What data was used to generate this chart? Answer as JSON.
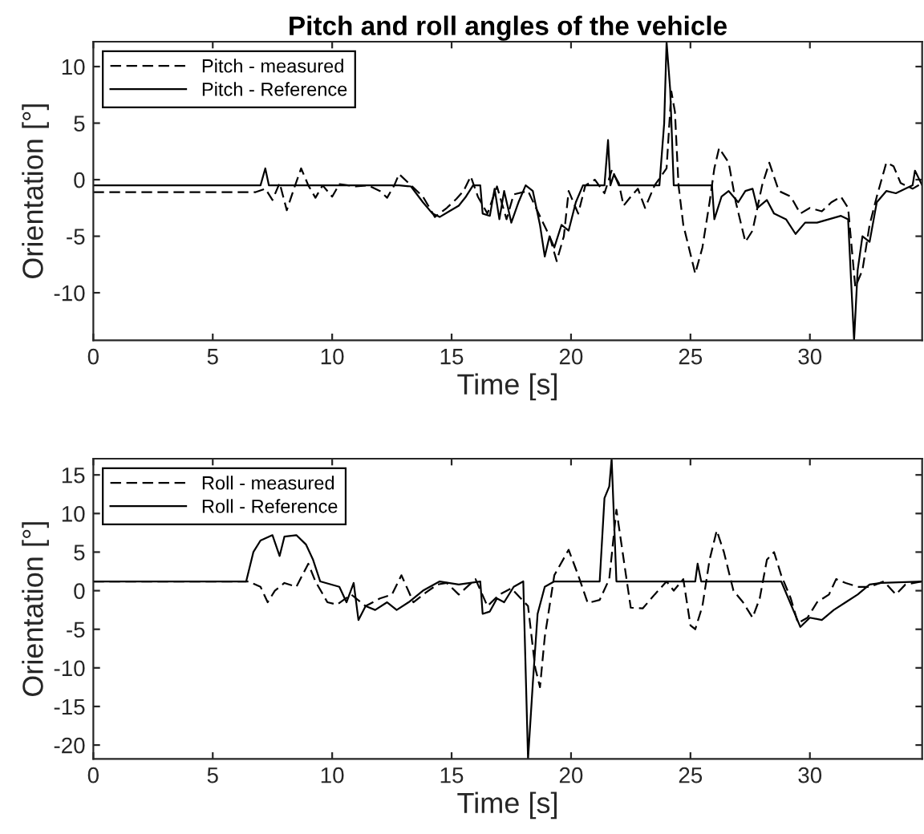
{
  "chart_data": [
    {
      "type": "line",
      "title": "Pitch and roll angles of the vehicle",
      "xlabel": "Time [s]",
      "ylabel": "Orientation [°]",
      "xlim": [
        0,
        34.7
      ],
      "ylim": [
        -14.2,
        12.2
      ],
      "xticks": [
        0,
        5,
        10,
        15,
        20,
        25,
        30
      ],
      "yticks": [
        -10,
        -5,
        0,
        5,
        10
      ],
      "legend": "top left",
      "grid": false,
      "series": [
        {
          "name": "Pitch - measured",
          "color": "#000000",
          "line_style": "dashed",
          "x": [
            0,
            6.8,
            7.2,
            7.5,
            7.8,
            8.1,
            8.4,
            8.7,
            9.0,
            9.3,
            9.6,
            10,
            10.3,
            11,
            11.5,
            12.0,
            12.3,
            12.6,
            12.8,
            13.2,
            13.8,
            14.3,
            14.8,
            15.2,
            15.5,
            15.8,
            16.1,
            16.5,
            16.9,
            17.3,
            17.6,
            18.2,
            18.6,
            19.1,
            19.4,
            19.7,
            19.9,
            20.3,
            20.6,
            21.0,
            21.4,
            21.7,
            22.0,
            22.2,
            22.5,
            22.8,
            23.1,
            23.5,
            24.0,
            24.2,
            24.35,
            24.5,
            24.7,
            25.2,
            25.5,
            25.8,
            26.0,
            26.2,
            26.6,
            26.9,
            27.3,
            27.6,
            28,
            28.3,
            28.7,
            29.2,
            29.6,
            30,
            30.5,
            30.9,
            31.3,
            31.6,
            31.9,
            32.2,
            32.5,
            32.8,
            33.0,
            33.2,
            33.5,
            33.8,
            34.3,
            34.7
          ],
          "values": [
            -1.1,
            -1.1,
            -0.8,
            -1.8,
            -0.3,
            -2.7,
            -0.8,
            1.0,
            -0.5,
            -1.6,
            -0.5,
            -1.5,
            -0.4,
            -0.6,
            -0.5,
            -1,
            -1.6,
            -0.5,
            0.5,
            -0.3,
            -1.5,
            -3.3,
            -2.5,
            -1.7,
            -1,
            0.3,
            -1.5,
            -3,
            -0.6,
            -3.5,
            -1.3,
            -1,
            -2.8,
            -5,
            -7.2,
            -5,
            -1,
            -3,
            -0.5,
            0,
            -1.2,
            0.8,
            -0.3,
            -2.3,
            -1.5,
            -0.8,
            -2.5,
            -0.5,
            1,
            7.8,
            6,
            -0.5,
            -4,
            -8.3,
            -6,
            -2,
            1,
            2.8,
            1.5,
            -2,
            -5.5,
            -4.5,
            -0.5,
            1.5,
            -1,
            -1.5,
            -3,
            -2.5,
            -2.8,
            -2,
            -1.5,
            -2.5,
            -9.5,
            -8,
            -4,
            -1.5,
            0,
            1.5,
            1.2,
            -0.3,
            -0.8,
            -0.3
          ]
        },
        {
          "name": "Pitch - Reference",
          "color": "#000000",
          "line_style": "solid",
          "x": [
            0,
            7.0,
            7.2,
            7.35,
            12.8,
            13.3,
            13.8,
            14.2,
            14.5,
            14.9,
            15.3,
            15.6,
            15.9,
            16.2,
            16.3,
            16.6,
            16.8,
            17.0,
            17.2,
            17.5,
            17.8,
            18.1,
            18.4,
            18.7,
            18.9,
            19.1,
            19.3,
            19.6,
            19.9,
            20.2,
            20.5,
            21.4,
            21.55,
            21.65,
            21.8,
            22,
            23.7,
            23.9,
            24.0,
            24.15,
            24.3,
            25.9,
            26.0,
            26.3,
            26.6,
            27,
            27.3,
            27.6,
            27.8,
            28.2,
            28.5,
            29,
            29.4,
            29.8,
            30.3,
            30.8,
            31.3,
            31.6,
            31.75,
            31.85,
            32.0,
            32.2,
            32.5,
            32.8,
            33.2,
            33.6,
            34.0,
            34.3,
            34.4,
            34.7
          ],
          "values": [
            -0.5,
            -0.5,
            1.0,
            -0.5,
            -0.5,
            -0.6,
            -2,
            -3,
            -3.3,
            -2.8,
            -2.3,
            -1.5,
            -0.5,
            -0.5,
            -3,
            -3.2,
            -0.8,
            -3.5,
            -1,
            -3.8,
            -2,
            -0.5,
            -1,
            -4,
            -6.8,
            -5,
            -6,
            -4,
            -4.5,
            -2,
            -0.5,
            -0.5,
            3.5,
            -0.5,
            0.5,
            -0.5,
            -0.5,
            5,
            12.2,
            8,
            -0.5,
            -0.5,
            -3.5,
            -1.5,
            -1.0,
            -2,
            -1,
            -0.8,
            -2.5,
            -1.8,
            -3,
            -3.5,
            -4.8,
            -3.8,
            -3.8,
            -3.5,
            -3.2,
            -3.5,
            -10,
            -14.2,
            -8,
            -5,
            -5.5,
            -2,
            -1.0,
            -1.2,
            -0.8,
            -0.5,
            0.8,
            -0.5
          ]
        }
      ]
    },
    {
      "type": "line",
      "xlabel": "Time [s]",
      "ylabel": "Orientation [°]",
      "xlim": [
        0,
        34.7
      ],
      "ylim": [
        -21.8,
        17.1
      ],
      "xticks": [
        0,
        5,
        10,
        15,
        20,
        25,
        30
      ],
      "yticks": [
        -20,
        -15,
        -10,
        -5,
        0,
        5,
        10,
        15
      ],
      "legend": "top left",
      "grid": false,
      "series": [
        {
          "name": "Roll - measured",
          "color": "#000000",
          "line_style": "dashed",
          "x": [
            0,
            6.5,
            7.0,
            7.3,
            7.6,
            8.0,
            8.5,
            9.0,
            9.3,
            9.8,
            10.2,
            10.8,
            11.4,
            12,
            12.5,
            12.9,
            13.4,
            13.9,
            14.4,
            14.8,
            15.3,
            16.0,
            16.5,
            17.0,
            17.5,
            18.2,
            18.5,
            18.7,
            18.9,
            19.3,
            19.9,
            20.3,
            20.7,
            21.2,
            21.6,
            21.9,
            22.3,
            22.5,
            23,
            23.5,
            24,
            24.3,
            24.7,
            25.0,
            25.2,
            25.5,
            25.8,
            26.1,
            26.4,
            26.8,
            27.2,
            27.6,
            27.9,
            28.2,
            28.5,
            28.8,
            29.2,
            29.5,
            29.9,
            30.3,
            30.8,
            31.1,
            31.5,
            32,
            32.5,
            33.1,
            33.6,
            34.0,
            34.7
          ],
          "values": [
            1.2,
            1.2,
            0.5,
            -1.5,
            0,
            1,
            0.5,
            3.5,
            1.2,
            -1.5,
            -1.8,
            -0.5,
            -2,
            -1,
            -0.5,
            2,
            -1.5,
            -0.3,
            0.8,
            1,
            -0.5,
            1.5,
            -2,
            -0.5,
            0.3,
            -2,
            -10,
            -12.5,
            -6,
            2,
            5.3,
            2,
            -1.6,
            -1.2,
            1.5,
            10.5,
            2,
            -2.2,
            -2.3,
            -0.5,
            1.2,
            0,
            1.5,
            -4.5,
            -5,
            -2,
            4,
            7.8,
            5,
            0,
            -1.5,
            -3.5,
            -1,
            4,
            5,
            2,
            -1,
            -4.2,
            -3.5,
            -1.5,
            -0.5,
            1.5,
            1,
            0.5,
            0.5,
            1.2,
            -0.5,
            0.8,
            1.2
          ]
        },
        {
          "name": "Roll - Reference",
          "color": "#000000",
          "line_style": "solid",
          "x": [
            0,
            6.4,
            6.7,
            7.0,
            7.5,
            7.8,
            8.0,
            8.5,
            8.9,
            9.2,
            9.5,
            10.3,
            10.6,
            10.9,
            11.1,
            11.4,
            11.8,
            12.3,
            12.7,
            13.2,
            13.8,
            14.5,
            15.3,
            16.2,
            16.3,
            16.6,
            16.9,
            17.2,
            17.6,
            18.0,
            18.2,
            18.4,
            18.6,
            18.9,
            19.3,
            21.2,
            21.4,
            21.6,
            21.7,
            21.9,
            25.2,
            25.3,
            25.45,
            28.8,
            29.1,
            29.6,
            30.0,
            30.5,
            31,
            31.5,
            32,
            32.5,
            33,
            34.7
          ],
          "values": [
            1.2,
            1.2,
            5,
            6.5,
            7.2,
            4.5,
            7,
            7.2,
            6,
            4,
            1.2,
            0.5,
            -1.5,
            1,
            -3.8,
            -2,
            -2.5,
            -1.5,
            -2.5,
            -1.5,
            0,
            1.2,
            0.8,
            1.2,
            -3,
            -2.7,
            -1,
            -1.5,
            0.5,
            1.2,
            -21.8,
            -12,
            -3,
            0.5,
            1.2,
            1.2,
            12,
            13.5,
            17.1,
            1.2,
            1.2,
            3.5,
            1.2,
            1.2,
            -1,
            -4.7,
            -3.5,
            -3.8,
            -2.5,
            -1.5,
            -0.5,
            0.8,
            1.0,
            1.2
          ]
        }
      ]
    }
  ]
}
